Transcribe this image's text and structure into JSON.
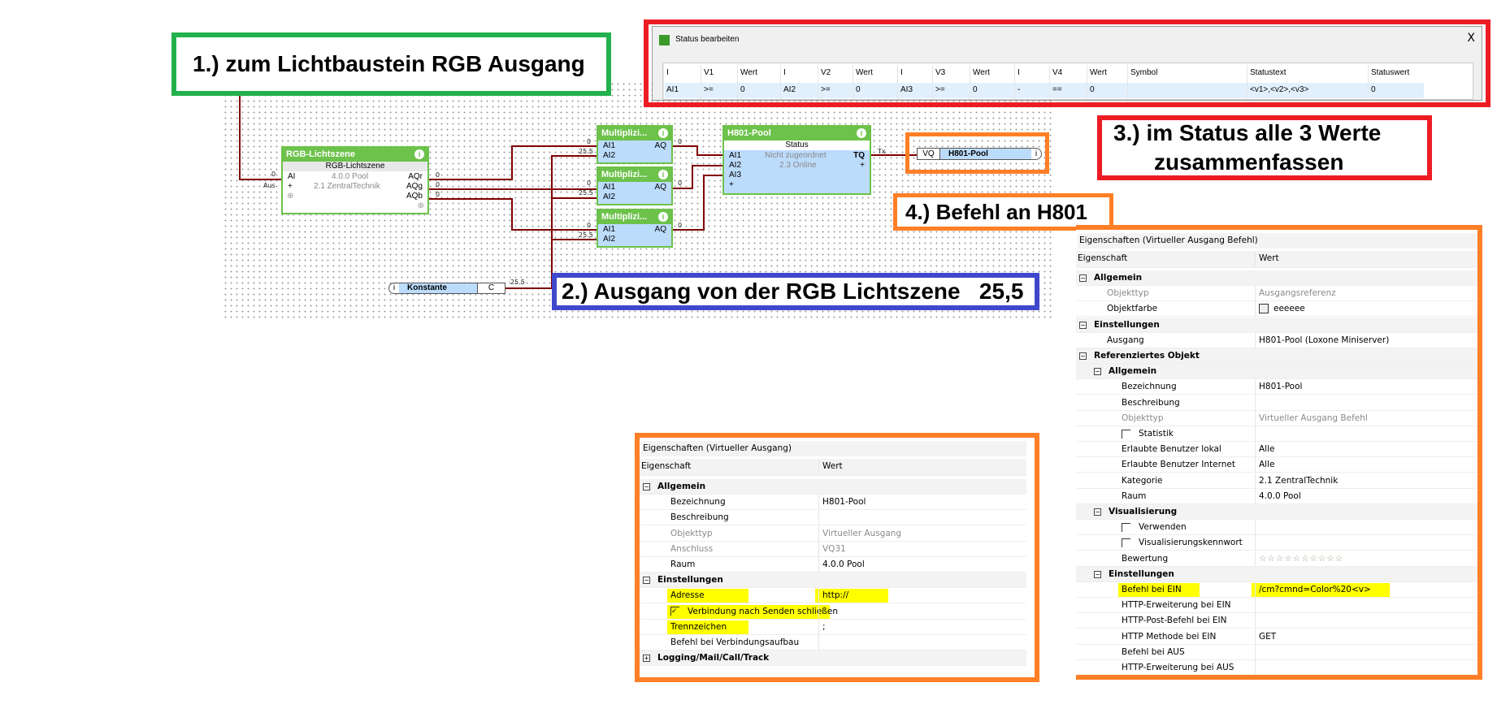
{
  "colors": {
    "callout_green": "#22b14c",
    "callout_red": "#ed1c24",
    "callout_orange": "#ff7f27",
    "callout_blue": "#3f48cc",
    "wire": "#800000",
    "block_green": "#6cc24a",
    "pin_blue": "#bcdcfc",
    "highlight": "#ffff00"
  },
  "callouts": {
    "step1": "1.) zum Lichtbaustein RGB Ausgang",
    "step2": "2.) Ausgang von der RGB Lichtszene   25,5",
    "step3_line1": "3.) im Status alle 3 Werte",
    "step3_line2": "zusammenfassen",
    "step4": "4.) Befehl an H801"
  },
  "canvas": {
    "rgb_block": {
      "title": "RGB-Lichtszene",
      "subtitle": "RGB-Lichtszene",
      "room": "4.0.0 Pool",
      "category": "2.1 ZentralTechnik",
      "inputs": [
        "AI",
        "+"
      ],
      "outputs": [
        "AQr",
        "AQg",
        "AQb"
      ],
      "input_values": [
        "0",
        "Aus"
      ],
      "output_values": [
        "0",
        "0",
        "0"
      ]
    },
    "multipliers": [
      {
        "title": "Multiplizi...",
        "in1": "AI1",
        "in2": "AI2",
        "out": "AQ",
        "v1": "0",
        "v2": "25.5",
        "vout": "0"
      },
      {
        "title": "Multiplizi...",
        "in1": "AI1",
        "in2": "AI2",
        "out": "AQ",
        "v1": "0",
        "v2": "25.5",
        "vout": "0"
      },
      {
        "title": "Multiplizi...",
        "in1": "AI1",
        "in2": "AI2",
        "out": "AQ",
        "v1": "0",
        "v2": "25.5",
        "vout": "0"
      }
    ],
    "status_block": {
      "title": "H801-Pool",
      "subtitle": "Status",
      "inputs": [
        "AI1",
        "AI2",
        "AI3",
        "+"
      ],
      "output": "TQ",
      "line1": "Nicht zugeordnet",
      "line2": "2.3 Online",
      "output_value": "Tx"
    },
    "vq": {
      "prefix": "VQ",
      "name": "H801-Pool"
    },
    "constant": {
      "name": "Konstante",
      "letter": "C",
      "value": "25.5"
    }
  },
  "status_dialog": {
    "title": "Status bearbeiten",
    "close": "X",
    "columns": [
      "I",
      "V1",
      "Wert",
      "I",
      "V2",
      "Wert",
      "I",
      "V3",
      "Wert",
      "I",
      "V4",
      "Wert",
      "Symbol",
      "Statustext",
      "Statuswert"
    ],
    "row": [
      "AI1",
      ">=",
      "0",
      "AI2",
      ">=",
      "0",
      "AI3",
      ">=",
      "0",
      "-",
      "==",
      "0",
      "",
      "<v1>,<v2>,<v3>",
      "0"
    ]
  },
  "panel_va": {
    "title": "Eigenschaften (Virtueller Ausgang)",
    "col1": "Eigenschaft",
    "col2": "Wert",
    "rows": [
      {
        "t": "group",
        "label": "Allgemein",
        "open": true,
        "lvl": 0
      },
      {
        "t": "item",
        "label": "Bezeichnung",
        "value": "H801-Pool",
        "lvl": 1
      },
      {
        "t": "item",
        "label": "Beschreibung",
        "value": "",
        "lvl": 1
      },
      {
        "t": "item",
        "label": "Objekttyp",
        "value": "Virtueller Ausgang",
        "lvl": 1,
        "grey": true
      },
      {
        "t": "item",
        "label": "Anschluss",
        "value": "VQ31",
        "lvl": 1,
        "grey": true
      },
      {
        "t": "item",
        "label": "Raum",
        "value": "4.0.0 Pool",
        "lvl": 1
      },
      {
        "t": "group",
        "label": "Einstellungen",
        "open": true,
        "lvl": 0
      },
      {
        "t": "item",
        "label": "Adresse",
        "value": "http://",
        "lvl": 1,
        "hl": true,
        "hlv": true
      },
      {
        "t": "check",
        "label": "Verbindung nach Senden schließen",
        "checked": true,
        "lvl": 1,
        "hl": true
      },
      {
        "t": "item",
        "label": "Trennzeichen",
        "value": ";",
        "lvl": 1,
        "hl": true
      },
      {
        "t": "item",
        "label": "Befehl bei Verbindungsaufbau",
        "value": "",
        "lvl": 1
      },
      {
        "t": "group",
        "label": "Logging/Mail/Call/Track",
        "open": false,
        "lvl": 0
      }
    ]
  },
  "panel_vab": {
    "title": "Eigenschaften (Virtueller Ausgang Befehl)",
    "col1": "Eigenschaft",
    "col2": "Wert",
    "rows": [
      {
        "t": "group",
        "label": "Allgemein",
        "open": true,
        "lvl": 0
      },
      {
        "t": "item",
        "label": "Objekttyp",
        "value": "Ausgangsreferenz",
        "lvl": 1,
        "grey": true
      },
      {
        "t": "item",
        "label": "Objektfarbe",
        "value": "eeeeee",
        "lvl": 1,
        "swatch": "#eeeeee"
      },
      {
        "t": "group",
        "label": "Einstellungen",
        "open": true,
        "lvl": 0
      },
      {
        "t": "item",
        "label": "Ausgang",
        "value": "H801-Pool (Loxone Miniserver)",
        "lvl": 1
      },
      {
        "t": "group",
        "label": "Referenziertes Objekt",
        "open": true,
        "lvl": 0
      },
      {
        "t": "group",
        "label": "Allgemein",
        "open": true,
        "lvl": 1
      },
      {
        "t": "item",
        "label": "Bezeichnung",
        "value": "H801-Pool",
        "lvl": 2
      },
      {
        "t": "item",
        "label": "Beschreibung",
        "value": "",
        "lvl": 2
      },
      {
        "t": "item",
        "label": "Objekttyp",
        "value": "Virtueller Ausgang Befehl",
        "lvl": 2,
        "grey": true
      },
      {
        "t": "check",
        "label": "Statistik",
        "checked": false,
        "lvl": 2
      },
      {
        "t": "item",
        "label": "Erlaubte Benutzer lokal",
        "value": "Alle",
        "lvl": 2
      },
      {
        "t": "item",
        "label": "Erlaubte Benutzer Internet",
        "value": "Alle",
        "lvl": 2
      },
      {
        "t": "item",
        "label": "Kategorie",
        "value": "2.1 ZentralTechnik",
        "lvl": 2
      },
      {
        "t": "item",
        "label": "Raum",
        "value": "4.0.0 Pool",
        "lvl": 2
      },
      {
        "t": "group",
        "label": "Visualisierung",
        "open": true,
        "lvl": 1
      },
      {
        "t": "check",
        "label": "Verwenden",
        "checked": false,
        "lvl": 2
      },
      {
        "t": "check",
        "label": "Visualisierungskennwort",
        "checked": false,
        "lvl": 2
      },
      {
        "t": "item",
        "label": "Bewertung",
        "value": "☆☆☆☆☆☆☆☆☆☆",
        "lvl": 2,
        "rating": 0
      },
      {
        "t": "group",
        "label": "Einstellungen",
        "open": true,
        "lvl": 1
      },
      {
        "t": "item",
        "label": "Befehl bei EIN",
        "value": "/cm?cmnd=Color%20<v>",
        "lvl": 2,
        "hl": true,
        "hlv": true
      },
      {
        "t": "item",
        "label": "HTTP-Erweiterung bei EIN",
        "value": "",
        "lvl": 2
      },
      {
        "t": "item",
        "label": "HTTP-Post-Befehl bei EIN",
        "value": "",
        "lvl": 2
      },
      {
        "t": "item",
        "label": "HTTP Methode bei EIN",
        "value": "GET",
        "lvl": 2
      },
      {
        "t": "item",
        "label": "Befehl bei AUS",
        "value": "",
        "lvl": 2
      },
      {
        "t": "item",
        "label": "HTTP-Erweiterung bei AUS",
        "value": "",
        "lvl": 2
      }
    ]
  }
}
